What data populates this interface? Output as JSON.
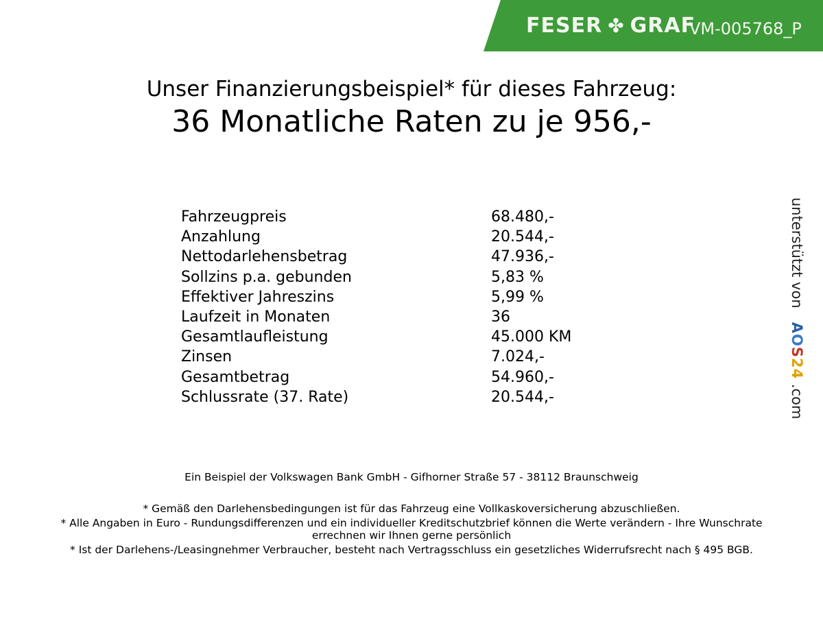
{
  "brand": {
    "logo_text_left": "FESER",
    "logo_text_right": "GRAF",
    "logo_icon": "clover-icon",
    "vehicle_code": "VM-005768_P",
    "color": "#3e9b3a"
  },
  "header": {
    "subtitle": "Unser Finanzierungsbeispiel* für dieses Fahrzeug:",
    "title": "36 Monatliche Raten zu je 956,-"
  },
  "rows": [
    {
      "label": "Fahrzeugpreis",
      "value": "68.480,-"
    },
    {
      "label": "Anzahlung",
      "value": "20.544,-"
    },
    {
      "label": "Nettodarlehensbetrag",
      "value": "47.936,-"
    },
    {
      "label": "Sollzins p.a. gebunden",
      "value": "5,83 %"
    },
    {
      "label": "Effektiver Jahreszins",
      "value": "5,99 %"
    },
    {
      "label": "Laufzeit in Monaten",
      "value": "36"
    },
    {
      "label": "Gesamtlaufleistung",
      "value": "45.000 KM"
    },
    {
      "label": "Zinsen",
      "value": "7.024,-"
    },
    {
      "label": "Gesamtbetrag",
      "value": "54.960,-"
    },
    {
      "label": "Schlussrate (37. Rate)",
      "value": "20.544,-"
    }
  ],
  "side": {
    "prefix": "unterstützt von",
    "aos": [
      "A",
      "O",
      "S",
      "2",
      "4"
    ],
    "suffix": ".com",
    "aos_colors": [
      "#2b5ea8",
      "#3a7bc8",
      "#c0392b",
      "#e0a100",
      "#e0a100"
    ]
  },
  "footer": {
    "bank": "Ein Beispiel der Volkswagen Bank GmbH - Gifhorner Straße 57 - 38112 Braunschweig",
    "notes": [
      "* Gemäß den Darlehensbedingungen ist für das Fahrzeug eine Vollkaskoversicherung abzuschließen.",
      "* Alle Angaben in Euro - Rundungsdifferenzen und ein individueller Kreditschutzbrief können die Werte verändern - Ihre Wunschrate errechnen wir Ihnen gerne persönlich",
      "* Ist der Darlehens-/Leasingnehmer Verbraucher, besteht nach Vertragsschluss ein gesetzliches Widerrufsrecht nach § 495 BGB."
    ]
  }
}
